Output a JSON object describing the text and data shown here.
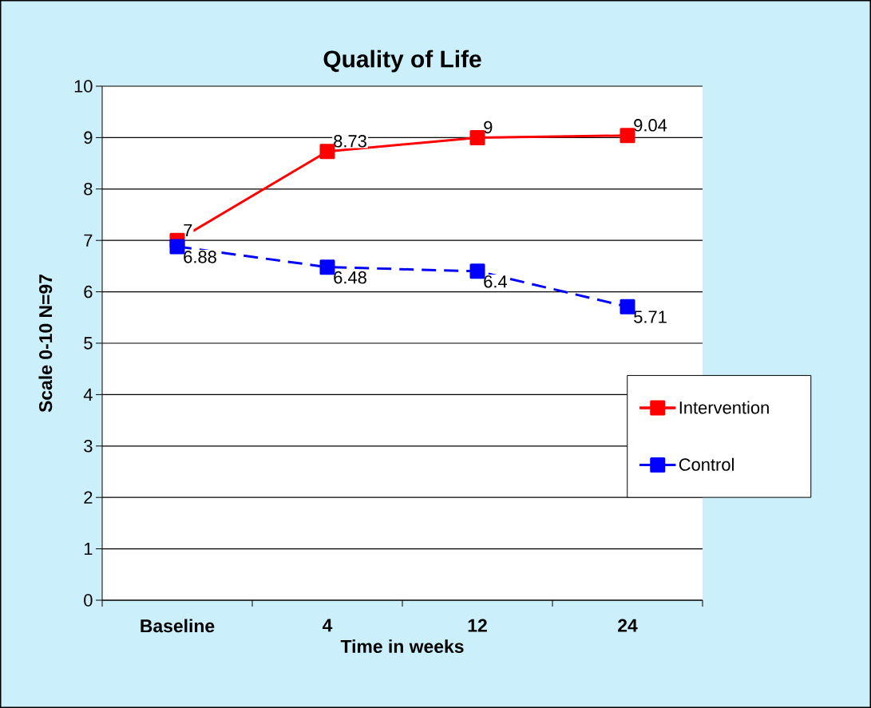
{
  "chart_data": {
    "type": "line",
    "title": "Quality of Life",
    "xlabel": "Time in weeks",
    "ylabel": "Scale 0-10 N=97",
    "categories": [
      "Baseline",
      "4",
      "12",
      "24"
    ],
    "series": [
      {
        "name": "Intervention",
        "color": "#ff0000",
        "line_style": "solid",
        "values": [
          7,
          8.73,
          9,
          9.04
        ]
      },
      {
        "name": "Control",
        "color": "#0000ff",
        "line_style": "dashed",
        "values": [
          6.88,
          6.48,
          6.4,
          5.71
        ]
      }
    ],
    "ylim": [
      0,
      10
    ],
    "yticks": [
      0,
      1,
      2,
      3,
      4,
      5,
      6,
      7,
      8,
      9,
      10
    ],
    "grid": "y",
    "legend": "right",
    "marker": "square",
    "data_labels": true
  }
}
